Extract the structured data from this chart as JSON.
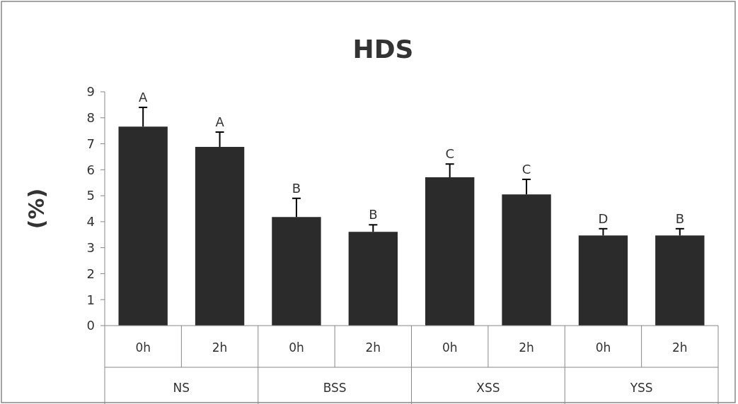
{
  "chart_data": {
    "type": "bar",
    "title": "HDS",
    "ylabel": "(%)",
    "categories": [
      "0h",
      "2h",
      "0h",
      "2h",
      "0h",
      "2h",
      "0h",
      "2h"
    ],
    "values": [
      7.66,
      6.88,
      4.18,
      3.61,
      5.71,
      5.05,
      3.47,
      3.47
    ],
    "errors": [
      [
        7.66,
        8.4
      ],
      [
        6.88,
        7.45
      ],
      [
        4.18,
        4.9
      ],
      [
        3.61,
        3.88
      ],
      [
        5.71,
        6.22
      ],
      [
        5.05,
        5.63
      ],
      [
        3.47,
        3.73
      ],
      [
        3.47,
        3.73
      ]
    ],
    "value_labels": [
      "A",
      "A",
      "B",
      "B",
      "C",
      "C",
      "D",
      "B"
    ],
    "color": "#2b2b2b",
    "ylim": [
      0,
      9
    ],
    "yticks": [
      0,
      1,
      2,
      3,
      4,
      5,
      6,
      7,
      8,
      9
    ],
    "annotations": [
      "NS",
      "BSS",
      "XSS",
      "YSS"
    ]
  }
}
